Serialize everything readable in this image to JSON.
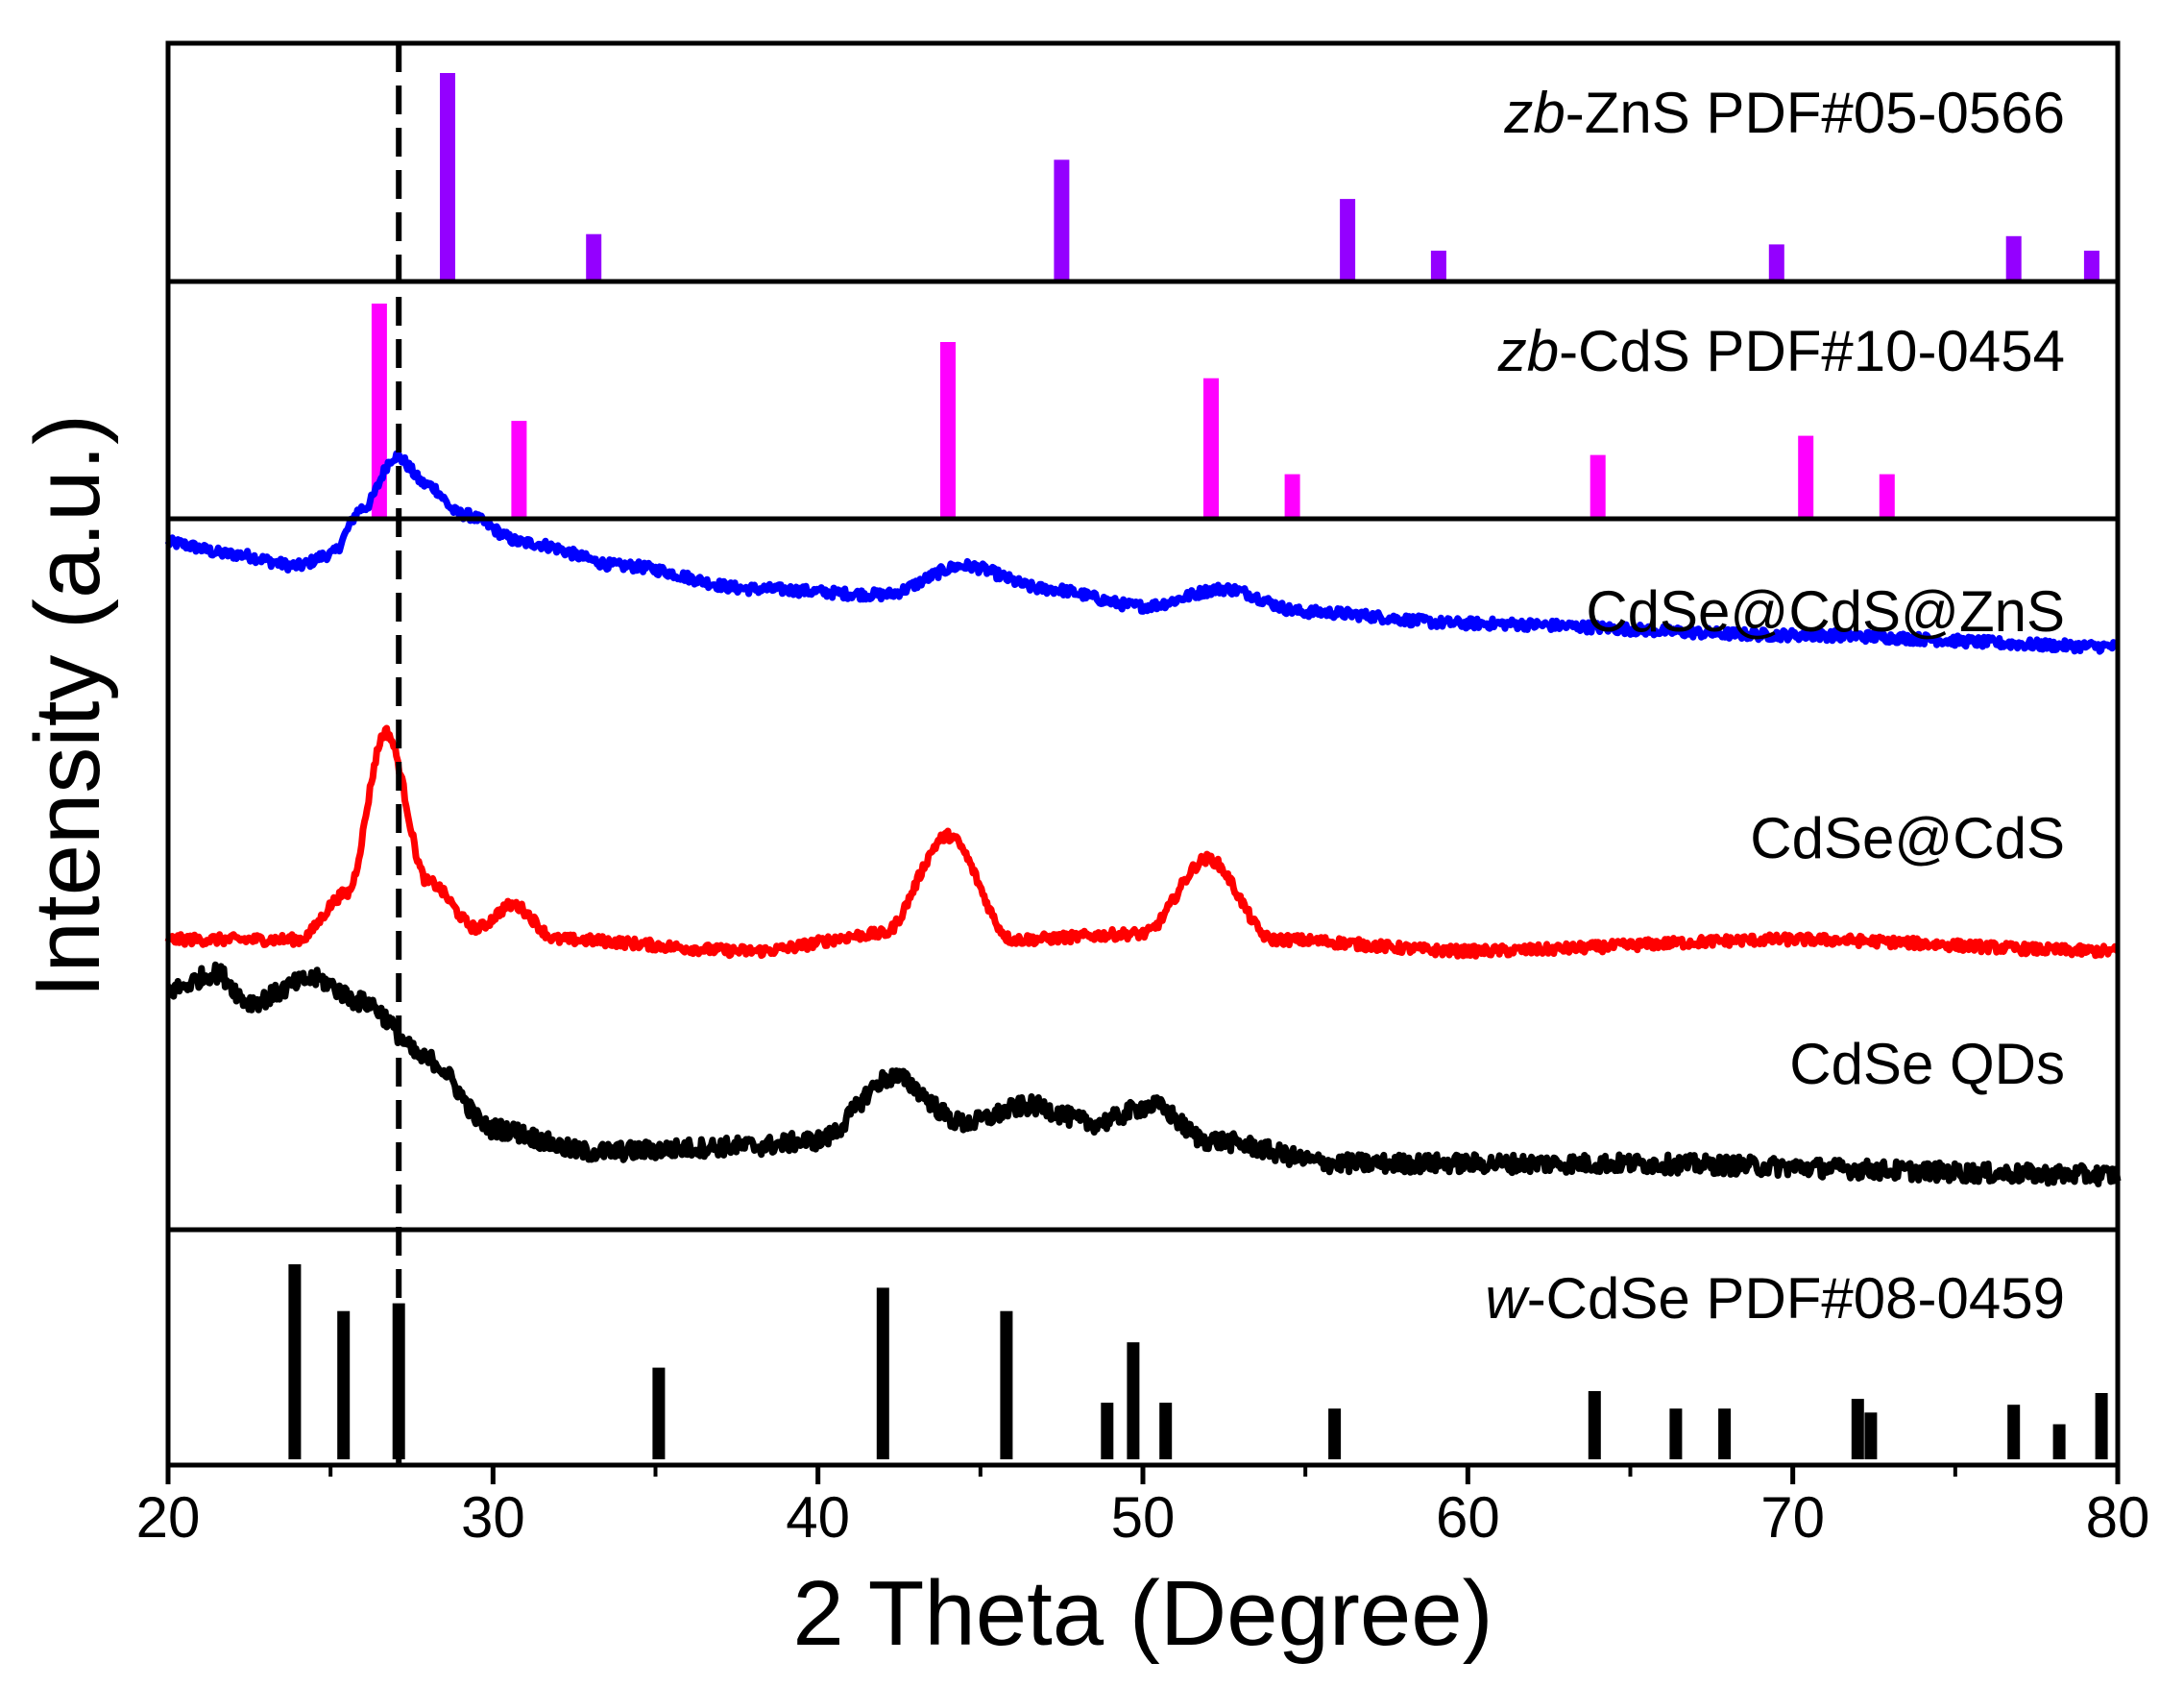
{
  "chart_data": {
    "type": "line",
    "xlabel": "2 Theta (Degree)",
    "ylabel": "Intensity (a.u.)",
    "xlim": [
      20,
      80
    ],
    "xticks": [
      20,
      30,
      40,
      50,
      60,
      70,
      80
    ],
    "xtick_labels": [
      "20",
      "30",
      "40",
      "50",
      "60",
      "70",
      "80"
    ],
    "grid": false,
    "reference_line": {
      "x": 27.1,
      "style": "dashed",
      "color": "#000000"
    },
    "reference_patterns": [
      {
        "name": "zb-ZnS PDF#05-0566",
        "label_prefix": "zb",
        "label_rest": "-ZnS PDF#05-0566",
        "color": "#9400ff",
        "position": "top",
        "peaks": [
          {
            "x": 28.6,
            "y": 100
          },
          {
            "x": 33.1,
            "y": 22
          },
          {
            "x": 47.5,
            "y": 58
          },
          {
            "x": 56.3,
            "y": 39
          },
          {
            "x": 59.1,
            "y": 14
          },
          {
            "x": 69.5,
            "y": 17
          },
          {
            "x": 76.8,
            "y": 21
          },
          {
            "x": 79.2,
            "y": 14
          }
        ]
      },
      {
        "name": "zb-CdS PDF#10-0454",
        "label_prefix": "zb",
        "label_rest": "-CdS PDF#10-0454",
        "color": "#ff00ff",
        "position": "upper",
        "peaks": [
          {
            "x": 26.5,
            "y": 100
          },
          {
            "x": 30.8,
            "y": 45
          },
          {
            "x": 44.0,
            "y": 82
          },
          {
            "x": 52.1,
            "y": 65
          },
          {
            "x": 54.6,
            "y": 20
          },
          {
            "x": 64.0,
            "y": 29
          },
          {
            "x": 70.4,
            "y": 38
          },
          {
            "x": 72.9,
            "y": 20
          }
        ]
      },
      {
        "name": "w-CdSe PDF#08-0459",
        "label_prefix": "w",
        "label_rest": "-CdSe PDF#08-0459",
        "color": "#000000",
        "position": "bottom",
        "peaks": [
          {
            "x": 23.9,
            "y": 100
          },
          {
            "x": 25.4,
            "y": 76
          },
          {
            "x": 27.1,
            "y": 80
          },
          {
            "x": 35.1,
            "y": 47
          },
          {
            "x": 42.0,
            "y": 88
          },
          {
            "x": 45.8,
            "y": 76
          },
          {
            "x": 48.9,
            "y": 29
          },
          {
            "x": 49.7,
            "y": 60
          },
          {
            "x": 50.7,
            "y": 29
          },
          {
            "x": 55.9,
            "y": 26
          },
          {
            "x": 63.9,
            "y": 35
          },
          {
            "x": 66.4,
            "y": 26
          },
          {
            "x": 67.9,
            "y": 26
          },
          {
            "x": 72.0,
            "y": 31
          },
          {
            "x": 72.4,
            "y": 24
          },
          {
            "x": 76.8,
            "y": 28
          },
          {
            "x": 78.2,
            "y": 18
          },
          {
            "x": 79.5,
            "y": 34
          }
        ]
      }
    ],
    "series": [
      {
        "name": "CdSe@CdS@ZnS",
        "color": "#0000ff",
        "baseline": 12,
        "noise": 0.9,
        "points": [
          {
            "x": 20,
            "y": 18
          },
          {
            "x": 22,
            "y": 16
          },
          {
            "x": 24,
            "y": 14
          },
          {
            "x": 25,
            "y": 16
          },
          {
            "x": 26,
            "y": 24
          },
          {
            "x": 27,
            "y": 33
          },
          {
            "x": 28,
            "y": 28
          },
          {
            "x": 29,
            "y": 23
          },
          {
            "x": 31,
            "y": 18
          },
          {
            "x": 34,
            "y": 14
          },
          {
            "x": 38,
            "y": 10
          },
          {
            "x": 42,
            "y": 9
          },
          {
            "x": 44.5,
            "y": 14
          },
          {
            "x": 47,
            "y": 10
          },
          {
            "x": 50,
            "y": 7
          },
          {
            "x": 52.5,
            "y": 10
          },
          {
            "x": 55,
            "y": 6
          },
          {
            "x": 60,
            "y": 4
          },
          {
            "x": 70,
            "y": 2
          },
          {
            "x": 80,
            "y": 0
          }
        ]
      },
      {
        "name": "CdSe@CdS",
        "color": "#ff0000",
        "baseline": 0,
        "noise": 0.9,
        "points": [
          {
            "x": 20,
            "y": 2
          },
          {
            "x": 24,
            "y": 2
          },
          {
            "x": 25.5,
            "y": 10
          },
          {
            "x": 26.7,
            "y": 38
          },
          {
            "x": 28,
            "y": 12
          },
          {
            "x": 29.5,
            "y": 4
          },
          {
            "x": 30.6,
            "y": 8
          },
          {
            "x": 32,
            "y": 2
          },
          {
            "x": 38,
            "y": 0
          },
          {
            "x": 42,
            "y": 3
          },
          {
            "x": 44,
            "y": 20
          },
          {
            "x": 46,
            "y": 2
          },
          {
            "x": 50,
            "y": 3
          },
          {
            "x": 52,
            "y": 16
          },
          {
            "x": 54,
            "y": 2
          },
          {
            "x": 60,
            "y": 0
          },
          {
            "x": 70,
            "y": 2
          },
          {
            "x": 80,
            "y": 0
          }
        ]
      },
      {
        "name": "CdSe QDs",
        "color": "#000000",
        "baseline": 0,
        "noise": 1.6,
        "points": [
          {
            "x": 20,
            "y": 32
          },
          {
            "x": 21.5,
            "y": 35
          },
          {
            "x": 22.5,
            "y": 30
          },
          {
            "x": 24.5,
            "y": 34
          },
          {
            "x": 26,
            "y": 30
          },
          {
            "x": 28,
            "y": 20
          },
          {
            "x": 30,
            "y": 8
          },
          {
            "x": 33,
            "y": 4
          },
          {
            "x": 38,
            "y": 5
          },
          {
            "x": 40,
            "y": 6
          },
          {
            "x": 42.3,
            "y": 17
          },
          {
            "x": 44.5,
            "y": 9
          },
          {
            "x": 46.5,
            "y": 12
          },
          {
            "x": 48.5,
            "y": 9
          },
          {
            "x": 50.3,
            "y": 12
          },
          {
            "x": 52,
            "y": 6
          },
          {
            "x": 56,
            "y": 2
          },
          {
            "x": 64,
            "y": 2
          },
          {
            "x": 80,
            "y": 0
          }
        ]
      }
    ],
    "series_labels": [
      "CdSe@CdS@ZnS",
      "CdSe@CdS",
      "CdSe QDs"
    ]
  }
}
